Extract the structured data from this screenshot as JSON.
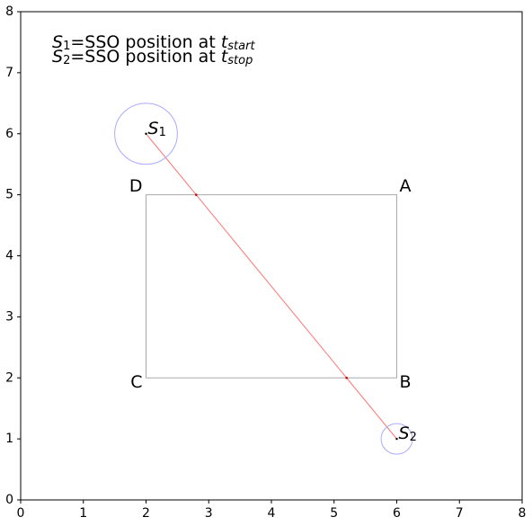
{
  "chart_data": {
    "type": "geometry",
    "xlim": [
      0,
      8
    ],
    "ylim": [
      0,
      8
    ],
    "xticks": [
      0,
      1,
      2,
      3,
      4,
      5,
      6,
      7,
      8
    ],
    "yticks": [
      0,
      1,
      2,
      3,
      4,
      5,
      6,
      7,
      8
    ],
    "annotations": [
      [
        "S",
        "1",
        "=SSO position at ",
        "t",
        "start"
      ],
      [
        "S",
        "2",
        "=SSO position at ",
        "t",
        "stop"
      ]
    ],
    "rectangle": {
      "x": [
        6,
        6,
        2,
        2
      ],
      "y": [
        5,
        2,
        2,
        5
      ],
      "labels": [
        "A",
        "B",
        "C",
        "D"
      ],
      "color": "#aaaaaa"
    },
    "path": {
      "x": [
        2,
        6
      ],
      "y": [
        6,
        1
      ],
      "color": "#ff7777"
    },
    "points": {
      "x": [
        2,
        6
      ],
      "y": [
        6,
        1
      ],
      "radii": [
        0.5,
        0.25
      ],
      "labels": [
        [
          "S",
          "1"
        ],
        [
          "S",
          "2"
        ]
      ],
      "circle_color": "#aaaaff"
    },
    "intersections": {
      "x": [
        2.8,
        5.2
      ],
      "y": [
        5,
        2
      ],
      "color": "#cc0000"
    }
  }
}
